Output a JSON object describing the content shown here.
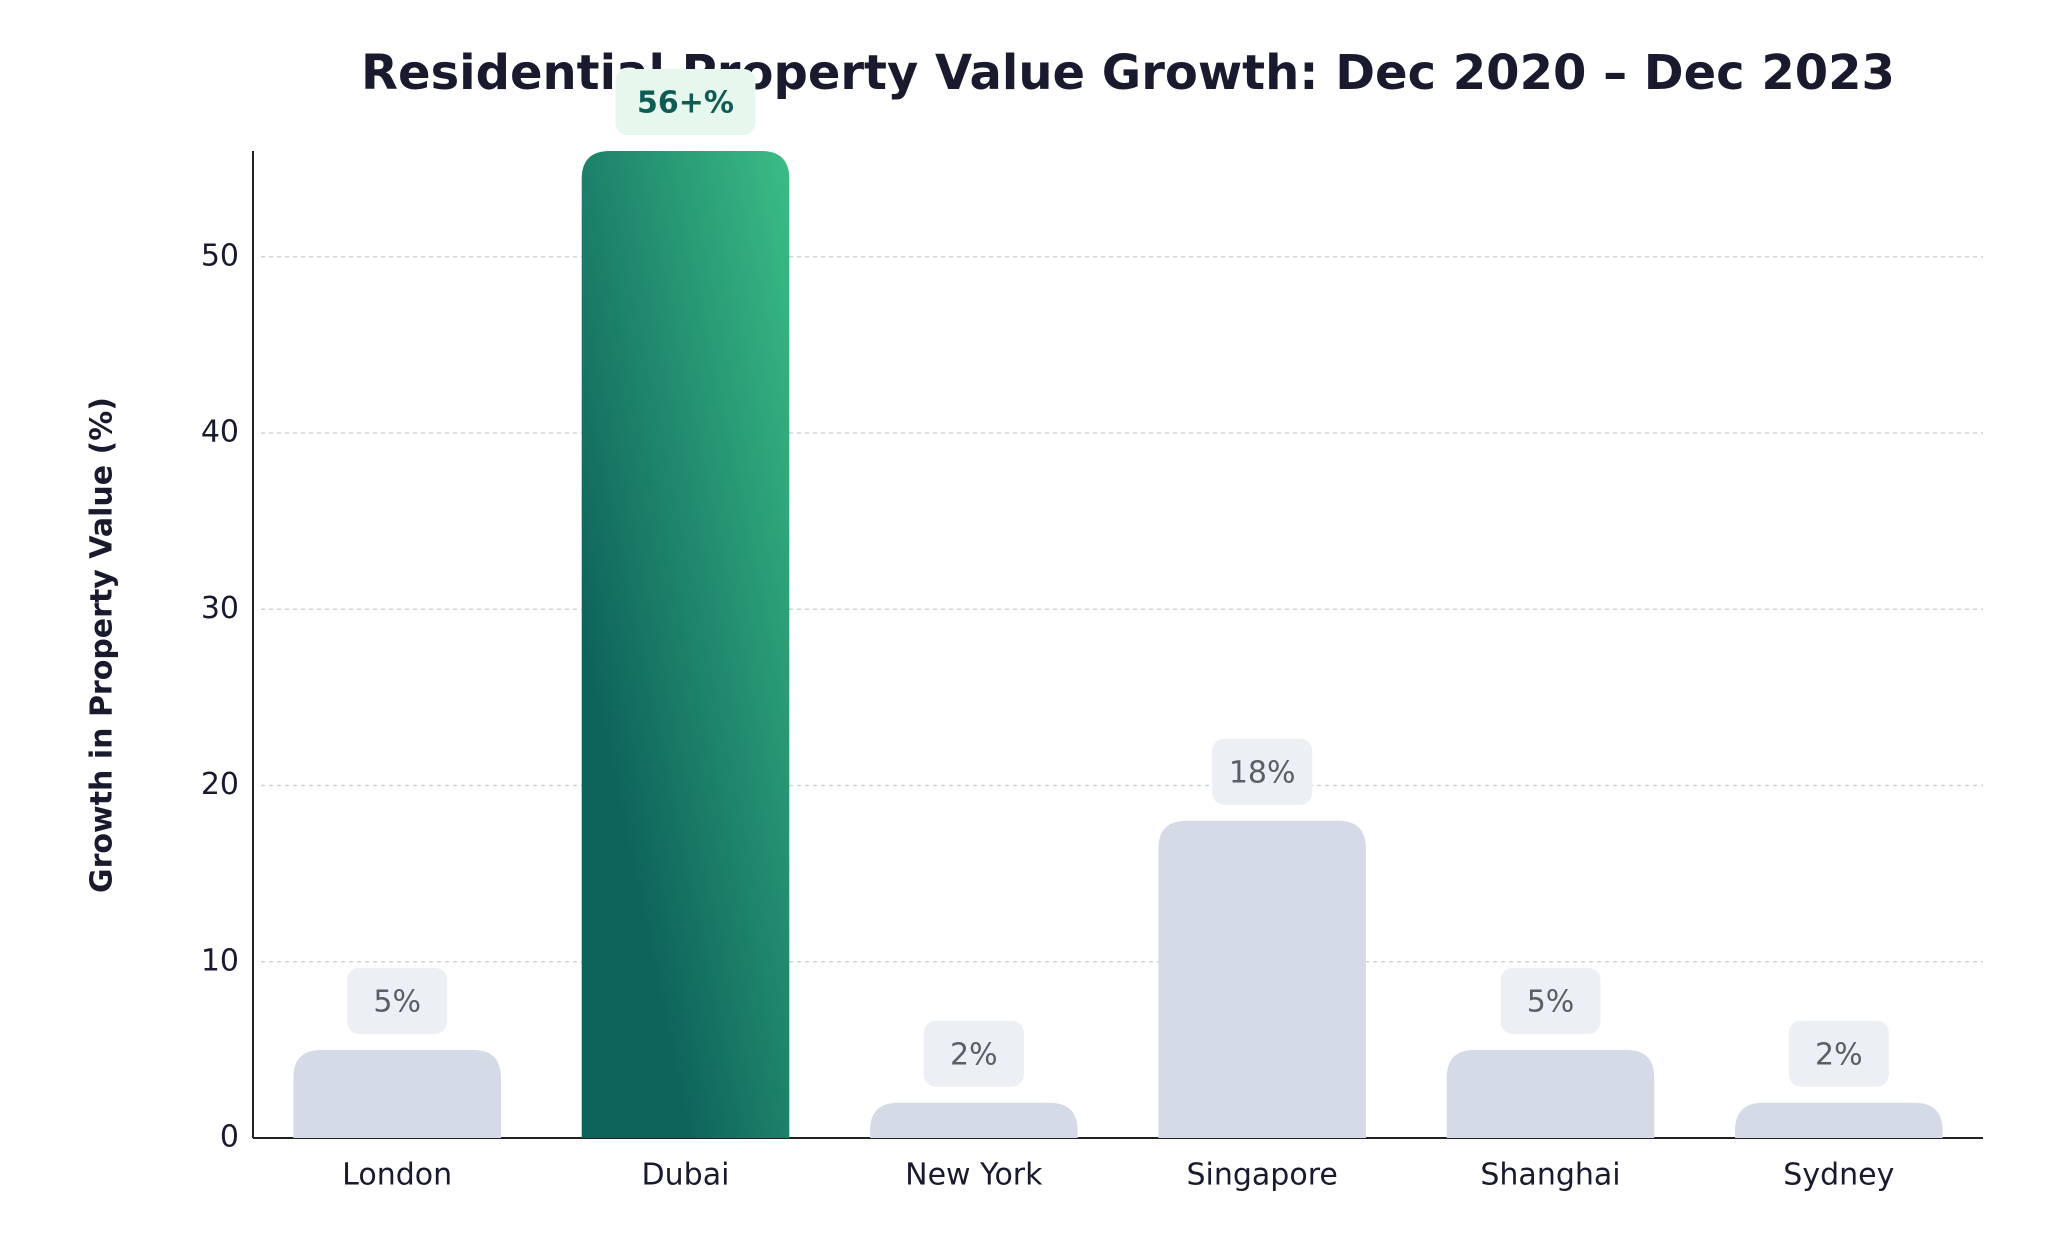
{
  "chart_data": {
    "type": "bar",
    "title": "Residential Property Value Growth: Dec 2020 – Dec 2023",
    "y_label": "Growth in Property Value (%)",
    "categories": [
      "London",
      "Dubai",
      "New York",
      "Singapore",
      "Shanghai",
      "Sydney"
    ],
    "values": [
      5,
      56,
      2,
      18,
      5,
      2
    ],
    "value_labels": [
      "5%",
      "56+%",
      "2%",
      "18%",
      "5%",
      "2%"
    ],
    "colors": [
      "#d5dbe6",
      "#1d8a6c",
      "#d5dbe6",
      "#d5dbe6",
      "#d5dbe6",
      "#d5dbe6"
    ],
    "ylim": [
      0,
      56
    ],
    "yticks": [
      0,
      10,
      20,
      30,
      40,
      50
    ],
    "grid": true
  }
}
